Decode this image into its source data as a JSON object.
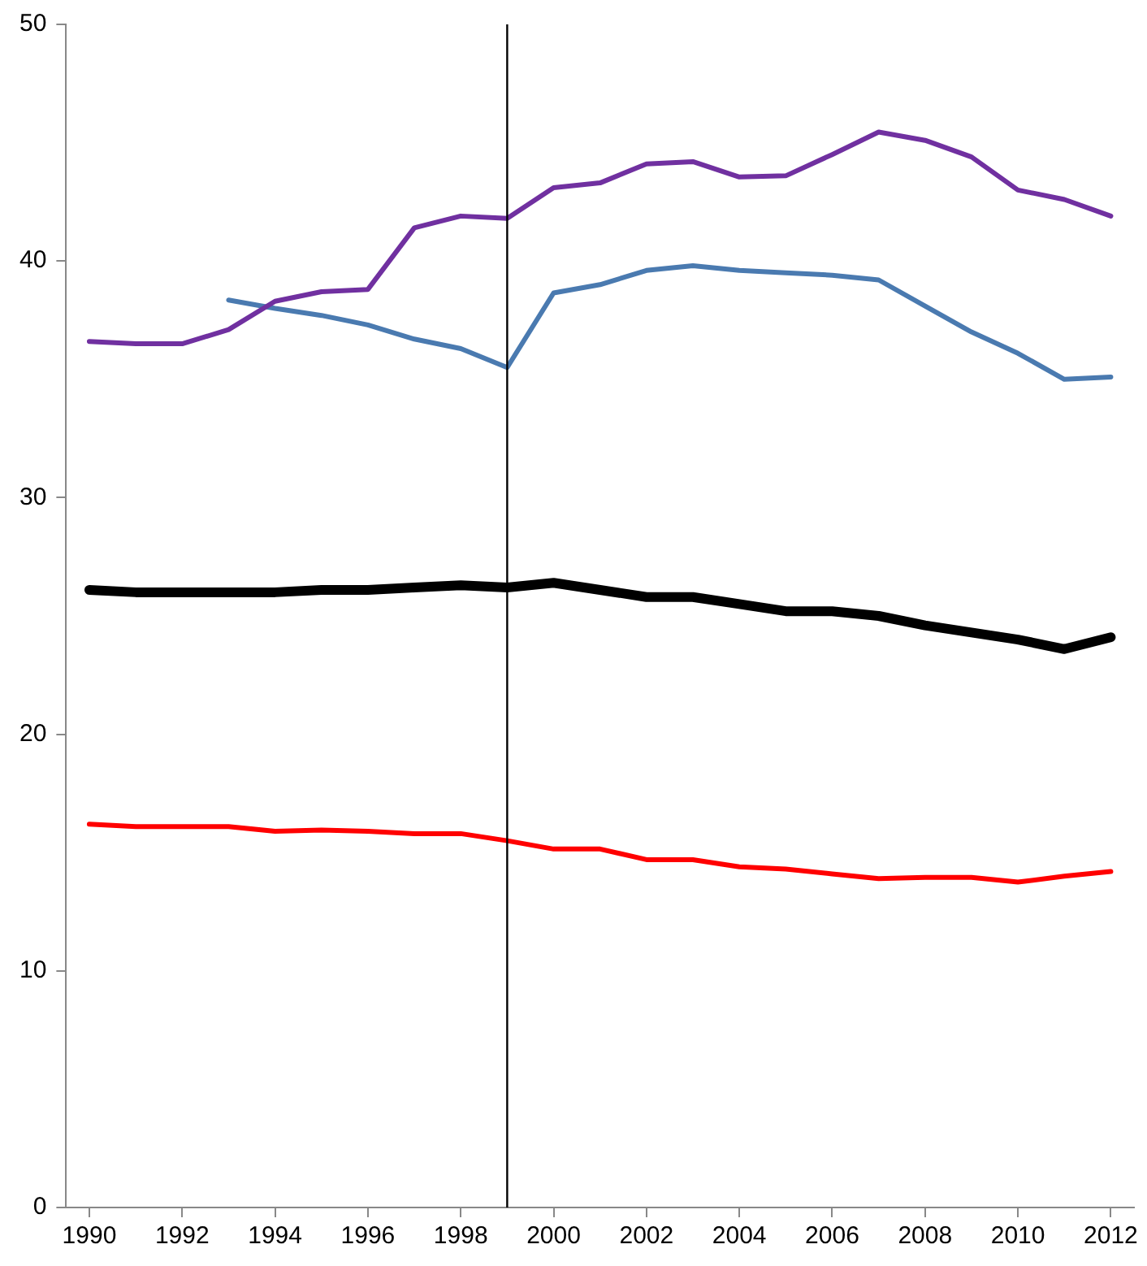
{
  "chart_data": {
    "type": "line",
    "x": [
      1990,
      1991,
      1992,
      1993,
      1994,
      1995,
      1996,
      1997,
      1998,
      1999,
      2000,
      2001,
      2002,
      2003,
      2004,
      2005,
      2006,
      2007,
      2008,
      2009,
      2010,
      2011,
      2012
    ],
    "series": [
      {
        "color": "#7030a0",
        "values": [
          36.6,
          36.5,
          36.5,
          37.1,
          38.3,
          38.7,
          38.8,
          41.4,
          41.9,
          41.8,
          43.1,
          43.3,
          44.1,
          44.2,
          43.55,
          43.6,
          44.5,
          45.45,
          45.1,
          44.4,
          43.0,
          42.6,
          41.9
        ]
      },
      {
        "color": "#4a7ab0",
        "values": [
          null,
          null,
          null,
          38.35,
          38.0,
          37.7,
          37.3,
          36.7,
          36.3,
          35.5,
          38.65,
          39.0,
          39.6,
          39.8,
          39.6,
          39.5,
          39.4,
          39.2,
          38.1,
          37.0,
          36.1,
          35.0,
          35.1
        ]
      },
      {
        "color": "#000000",
        "values": [
          26.1,
          26.0,
          26.0,
          26.0,
          26.0,
          26.1,
          26.1,
          26.2,
          26.3,
          26.2,
          26.4,
          26.1,
          25.8,
          25.8,
          25.5,
          25.2,
          25.2,
          25.0,
          24.6,
          24.3,
          24.0,
          23.6,
          24.1
        ]
      },
      {
        "color": "#ff0000",
        "values": [
          16.2,
          16.1,
          16.1,
          16.1,
          15.9,
          15.95,
          15.9,
          15.8,
          15.8,
          15.5,
          15.15,
          15.15,
          14.7,
          14.7,
          14.4,
          14.3,
          14.1,
          13.9,
          13.95,
          13.95,
          13.75,
          14.0,
          14.2
        ]
      }
    ],
    "xlim": [
      1989.5,
      2012.5
    ],
    "xticks": [
      1990,
      1992,
      1994,
      1996,
      1998,
      2000,
      2002,
      2004,
      2006,
      2008,
      2010,
      2012
    ],
    "ylim": [
      0,
      50
    ],
    "yticks": [
      0,
      10,
      20,
      30,
      40,
      50
    ],
    "ref_lines": [
      {
        "axis": "x",
        "value": 1999,
        "color": "#000000"
      }
    ],
    "grid": false,
    "legend": false,
    "marker": "none",
    "line_style": "solid"
  }
}
